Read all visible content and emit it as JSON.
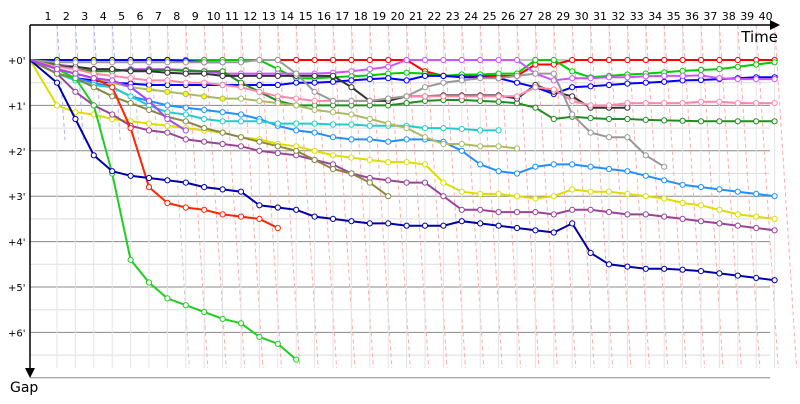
{
  "chart_data": {
    "type": "line",
    "xlabel": "Time",
    "ylabel": "Gap",
    "x_ticks": [
      "1",
      "2",
      "3",
      "4",
      "5",
      "6",
      "7",
      "8",
      "9",
      "10",
      "11",
      "12",
      "13",
      "14",
      "15",
      "16",
      "17",
      "18",
      "19",
      "20",
      "21",
      "22",
      "23",
      "24",
      "25",
      "26",
      "27",
      "28",
      "29",
      "30",
      "31",
      "32",
      "33",
      "34",
      "35",
      "36",
      "37",
      "38",
      "39",
      "40"
    ],
    "y_ticks": [
      "+0'",
      "+1'",
      "+2'",
      "+3'",
      "+4'",
      "+5'",
      "+6'"
    ],
    "ylim": [
      0,
      7
    ],
    "grid": true,
    "series": [
      {
        "color": "#ff0000",
        "values": [
          0,
          0,
          0,
          0,
          0,
          0,
          0,
          0,
          0,
          0,
          0,
          0,
          0,
          0,
          0,
          0,
          0,
          0,
          0,
          0,
          0.25,
          0.35,
          0.35,
          0.35,
          0.35,
          0.35,
          0.1,
          0.1,
          0,
          0,
          0,
          0,
          0,
          0,
          0,
          0,
          0,
          0,
          0,
          0
        ]
      },
      {
        "color": "#00cc00",
        "values": [
          0,
          0,
          0,
          0,
          0,
          0,
          0,
          0,
          0,
          0,
          0,
          0,
          0.2,
          0.4,
          0.4,
          0.38,
          0.36,
          0.34,
          0.3,
          0.28,
          0.3,
          0.35,
          0.32,
          0.32,
          0.3,
          0.3,
          0,
          0,
          0.25,
          0.38,
          0.35,
          0.32,
          0.3,
          0.27,
          0.24,
          0.22,
          0.2,
          0.15,
          0.1,
          0.05
        ]
      },
      {
        "color": "#0000ff",
        "values": [
          0,
          0,
          0,
          0,
          0,
          0,
          0,
          0.02,
          0.05,
          0.05
        ]
      },
      {
        "color": "#0000ff",
        "values": [
          0.3,
          0.4,
          0.45,
          0.5,
          0.52,
          0.55,
          0.55,
          0.55,
          0.55,
          0.55,
          0.55,
          0.55,
          0.55,
          0.5,
          0.5,
          0.48,
          0.45,
          0.42,
          0.4,
          0.45,
          0.35,
          0.35,
          0.38,
          0.38,
          0.4,
          0.5,
          0.6,
          0.75,
          0.6,
          0.58,
          0.55,
          0.52,
          0.5,
          0.48,
          0.45,
          0.44,
          0.42,
          0.4,
          0.38,
          0.38
        ]
      },
      {
        "color": "#cc55ff",
        "values": [
          0.1,
          0.15,
          0.2,
          0.25,
          0.2,
          0.2,
          0.2,
          0.22,
          0.25,
          0.3,
          0.3,
          0.3,
          0.3,
          0.3,
          0.3,
          0.28,
          0.25,
          0.2,
          0.15,
          0,
          0,
          0,
          0,
          0,
          0,
          0,
          0.3,
          0.45,
          0.4,
          0.4,
          0.38,
          0.38,
          0.36,
          0.35,
          0.35,
          0.34,
          0.4,
          0.42,
          0.42,
          0.42
        ]
      },
      {
        "color": "#228b22",
        "values": [
          0.1,
          0.2,
          0.25,
          0.25,
          0.22,
          0.22,
          0.22,
          0.24,
          0.25,
          0.25,
          0.5,
          0.7,
          0.9,
          1.0,
          1.0,
          1.0,
          1.0,
          1.0,
          1.0,
          0.95,
          0.9,
          0.88,
          0.88,
          0.9,
          0.92,
          0.95,
          1.05,
          1.3,
          1.25,
          1.28,
          1.3,
          1.3,
          1.32,
          1.33,
          1.34,
          1.35,
          1.35,
          1.35,
          1.35,
          1.35
        ]
      },
      {
        "color": "#333333",
        "values": [
          0.15,
          0.15,
          0.2,
          0.2,
          0.25,
          0.25,
          0.28,
          0.3,
          0.3,
          0.35,
          0.35,
          0.35,
          0.35,
          0.35,
          0.35,
          0.35,
          0.6,
          0.9,
          0.9,
          0.8,
          0.8,
          0.78,
          0.78,
          0.78,
          0.78,
          0.85,
          0.55,
          0.7,
          0.8,
          1.05,
          1.05,
          1.05
        ]
      },
      {
        "color": "#ff88aa",
        "values": [
          0.15,
          0.2,
          0.3,
          0.35,
          0.4,
          0.45,
          0.45,
          0.5,
          0.5,
          0.55,
          0.6,
          0.7,
          0.8,
          0.85,
          0.9,
          0.9,
          0.9,
          0.9,
          0.85,
          0.8,
          0.8,
          0.8,
          0.8,
          0.8,
          0.8,
          0.8,
          0.6,
          0.65,
          0.9,
          1.0,
          1.0,
          0.95,
          0.95,
          0.95,
          0.95,
          0.92,
          0.92,
          0.95,
          0.95,
          0.95
        ]
      },
      {
        "color": "#999999",
        "values": [
          0.05,
          0.05,
          0.05,
          0.05,
          0.05,
          0.05,
          0.05,
          0.05,
          0.05,
          0.05,
          0.05,
          0,
          0,
          0.3,
          0.7,
          0.9,
          0.9,
          0.9,
          0.85,
          0.8,
          0.6,
          0.5,
          0.45,
          0.4,
          0.4,
          0.35,
          0.3,
          0.3,
          1.2,
          1.6,
          1.7,
          1.7,
          2.1,
          2.35
        ]
      },
      {
        "color": "#1e90ff",
        "values": [
          0.3,
          0.4,
          0.5,
          0.6,
          0.8,
          0.9,
          1.0,
          1.05,
          1.1,
          1.15,
          1.2,
          1.3,
          1.45,
          1.55,
          1.6,
          1.7,
          1.75,
          1.75,
          1.8,
          1.75,
          1.75,
          1.8,
          2.0,
          2.3,
          2.45,
          2.5,
          2.35,
          2.3,
          2.3,
          2.35,
          2.4,
          2.45,
          2.55,
          2.65,
          2.75,
          2.8,
          2.85,
          2.9,
          2.95,
          3.0
        ]
      },
      {
        "color": "#22cccc",
        "values": [
          0.3,
          0.45,
          0.55,
          0.6,
          0.8,
          1.0,
          1.15,
          1.2,
          1.3,
          1.35,
          1.35,
          1.35,
          1.4,
          1.4,
          1.4,
          1.42,
          1.42,
          1.45,
          1.45,
          1.45,
          1.5,
          1.5,
          1.52,
          1.55,
          1.55
        ]
      },
      {
        "color": "#dddd00",
        "values": [
          1.0,
          1.15,
          1.2,
          1.3,
          1.35,
          1.4,
          1.45,
          1.5,
          1.55,
          1.6,
          1.7,
          1.75,
          1.85,
          1.9,
          2.0,
          2.1,
          2.15,
          2.2,
          2.25,
          2.25,
          2.3,
          2.7,
          2.9,
          2.95,
          2.95,
          3.0,
          3.05,
          3.0,
          2.85,
          2.9,
          2.9,
          2.95,
          3.0,
          3.05,
          3.15,
          3.2,
          3.3,
          3.4,
          3.45,
          3.5
        ]
      },
      {
        "color": "#994499",
        "values": [
          0.3,
          0.7,
          1.0,
          1.2,
          1.45,
          1.55,
          1.6,
          1.75,
          1.8,
          1.85,
          1.9,
          2.0,
          2.05,
          2.1,
          2.2,
          2.3,
          2.5,
          2.6,
          2.65,
          2.7,
          2.7,
          3.0,
          3.3,
          3.3,
          3.35,
          3.35,
          3.35,
          3.4,
          3.3,
          3.3,
          3.35,
          3.4,
          3.4,
          3.45,
          3.5,
          3.55,
          3.6,
          3.65,
          3.7,
          3.75
        ]
      },
      {
        "color": "#888844",
        "values": [
          0.3,
          0.4,
          0.6,
          0.8,
          0.95,
          1.1,
          1.25,
          1.35,
          1.5,
          1.6,
          1.7,
          1.8,
          1.9,
          2.0,
          2.2,
          2.4,
          2.5,
          2.7,
          3.0
        ]
      },
      {
        "color": "#aabb66",
        "values": [
          0.2,
          0.3,
          0.4,
          0.5,
          0.6,
          0.65,
          0.7,
          0.75,
          0.8,
          0.85,
          0.85,
          0.9,
          0.95,
          1.0,
          1.1,
          1.15,
          1.2,
          1.3,
          1.4,
          1.5,
          1.7,
          1.85,
          1.85,
          1.9,
          1.9,
          1.95
        ]
      },
      {
        "color": "#ff2200",
        "values": [
          0.2,
          0.3,
          0.4,
          0.6,
          1.5,
          2.8,
          3.15,
          3.25,
          3.3,
          3.4,
          3.45,
          3.5,
          3.7
        ]
      },
      {
        "color": "#22cc22",
        "values": [
          0.2,
          0.4,
          1.0,
          2.5,
          4.4,
          4.9,
          5.25,
          5.4,
          5.55,
          5.7,
          5.8,
          6.1,
          6.25,
          6.6
        ]
      },
      {
        "color": "#0000aa",
        "values": [
          0.5,
          1.3,
          2.1,
          2.45,
          2.55,
          2.6,
          2.65,
          2.7,
          2.8,
          2.85,
          2.9,
          3.2,
          3.25,
          3.3,
          3.45,
          3.5,
          3.55,
          3.6,
          3.6,
          3.65,
          3.65,
          3.65,
          3.55,
          3.6,
          3.65,
          3.7,
          3.75,
          3.8,
          3.6,
          4.25,
          4.5,
          4.55,
          4.6,
          4.6,
          4.62,
          4.65,
          4.7,
          4.75,
          4.8,
          4.85
        ]
      },
      {
        "color": "#aa44ff",
        "values": [
          0.2,
          0.3,
          0.4,
          0.45,
          0.6,
          0.9,
          1.3,
          1.55
        ]
      }
    ]
  }
}
